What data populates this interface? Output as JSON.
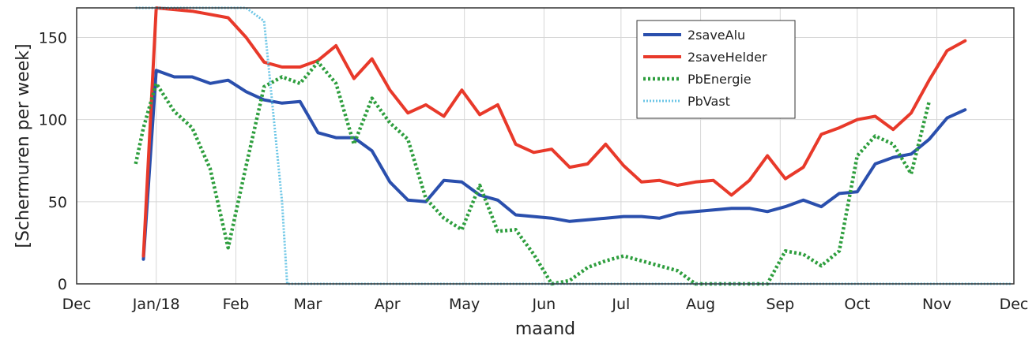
{
  "chart_data": {
    "type": "line",
    "title": "",
    "xlabel": "maand",
    "ylabel": "[Schermuren per week]",
    "x_ticks": [
      "Dec",
      "Jan/18",
      "Feb",
      "Mar",
      "Apr",
      "May",
      "Jun",
      "Jul",
      "Aug",
      "Sep",
      "Oct",
      "Nov",
      "Dec"
    ],
    "y_ticks": [
      0,
      50,
      100,
      150
    ],
    "ylim": [
      0,
      168
    ],
    "xlim": [
      "2017-12-01",
      "2018-12-01"
    ],
    "grid": true,
    "legend_position": "top-right",
    "series": [
      {
        "name": "2saveAlu",
        "color": "#2a4fad",
        "style": "solid",
        "x": [
          "2017-12-27",
          "2018-01-01",
          "2018-01-08",
          "2018-01-15",
          "2018-01-22",
          "2018-01-29",
          "2018-02-05",
          "2018-02-12",
          "2018-02-19",
          "2018-02-26",
          "2018-03-05",
          "2018-03-12",
          "2018-03-19",
          "2018-03-26",
          "2018-04-02",
          "2018-04-09",
          "2018-04-16",
          "2018-04-23",
          "2018-04-30",
          "2018-05-07",
          "2018-05-14",
          "2018-05-21",
          "2018-05-28",
          "2018-06-04",
          "2018-06-11",
          "2018-06-18",
          "2018-06-25",
          "2018-07-02",
          "2018-07-09",
          "2018-07-16",
          "2018-07-23",
          "2018-07-30",
          "2018-08-06",
          "2018-08-13",
          "2018-08-20",
          "2018-08-27",
          "2018-09-03",
          "2018-09-10",
          "2018-09-17",
          "2018-09-24",
          "2018-10-01",
          "2018-10-08",
          "2018-10-15",
          "2018-10-22",
          "2018-10-29",
          "2018-11-05",
          "2018-11-12"
        ],
        "y": [
          15,
          130,
          126,
          126,
          122,
          124,
          117,
          112,
          110,
          111,
          92,
          89,
          89,
          81,
          62,
          51,
          50,
          63,
          62,
          54,
          51,
          42,
          41,
          40,
          38,
          39,
          40,
          41,
          41,
          40,
          43,
          44,
          45,
          46,
          46,
          44,
          47,
          51,
          47,
          55,
          56,
          73,
          77,
          79,
          88,
          101,
          106
        ]
      },
      {
        "name": "2saveHelder",
        "color": "#e8392a",
        "style": "solid",
        "x": [
          "2017-12-27",
          "2018-01-01",
          "2018-01-08",
          "2018-01-15",
          "2018-01-22",
          "2018-01-29",
          "2018-02-05",
          "2018-02-12",
          "2018-02-19",
          "2018-02-26",
          "2018-03-05",
          "2018-03-12",
          "2018-03-19",
          "2018-03-26",
          "2018-04-02",
          "2018-04-09",
          "2018-04-16",
          "2018-04-23",
          "2018-04-30",
          "2018-05-07",
          "2018-05-14",
          "2018-05-21",
          "2018-05-28",
          "2018-06-04",
          "2018-06-11",
          "2018-06-18",
          "2018-06-25",
          "2018-07-02",
          "2018-07-09",
          "2018-07-16",
          "2018-07-23",
          "2018-07-30",
          "2018-08-06",
          "2018-08-13",
          "2018-08-20",
          "2018-08-27",
          "2018-09-03",
          "2018-09-10",
          "2018-09-17",
          "2018-09-24",
          "2018-10-01",
          "2018-10-08",
          "2018-10-15",
          "2018-10-22",
          "2018-10-29",
          "2018-11-05",
          "2018-11-12"
        ],
        "y": [
          17,
          168,
          167,
          166,
          164,
          162,
          150,
          135,
          132,
          132,
          136,
          145,
          125,
          137,
          118,
          104,
          109,
          102,
          118,
          103,
          109,
          85,
          80,
          82,
          71,
          73,
          85,
          72,
          62,
          63,
          60,
          62,
          63,
          54,
          63,
          78,
          64,
          71,
          91,
          95,
          100,
          102,
          94,
          104,
          124,
          142,
          148
        ]
      },
      {
        "name": "PbEnergie",
        "color": "#2e9e3e",
        "style": "dotted",
        "x": [
          "2017-12-24",
          "2017-12-27",
          "2018-01-01",
          "2018-01-08",
          "2018-01-15",
          "2018-01-22",
          "2018-01-29",
          "2018-02-05",
          "2018-02-12",
          "2018-02-19",
          "2018-02-26",
          "2018-03-05",
          "2018-03-12",
          "2018-03-19",
          "2018-03-26",
          "2018-04-02",
          "2018-04-09",
          "2018-04-16",
          "2018-04-23",
          "2018-04-30",
          "2018-05-07",
          "2018-05-14",
          "2018-05-21",
          "2018-05-28",
          "2018-06-04",
          "2018-06-11",
          "2018-06-18",
          "2018-06-25",
          "2018-07-02",
          "2018-07-09",
          "2018-07-16",
          "2018-07-23",
          "2018-07-30",
          "2018-08-06",
          "2018-08-13",
          "2018-08-20",
          "2018-08-27",
          "2018-09-03",
          "2018-09-10",
          "2018-09-17",
          "2018-09-24",
          "2018-10-01",
          "2018-10-08",
          "2018-10-15",
          "2018-10-22",
          "2018-10-29"
        ],
        "y": [
          73,
          95,
          122,
          105,
          95,
          70,
          22,
          72,
          120,
          126,
          122,
          135,
          122,
          85,
          113,
          98,
          88,
          52,
          40,
          33,
          60,
          32,
          33,
          18,
          0,
          2,
          10,
          14,
          17,
          14,
          11,
          8,
          0,
          0,
          0,
          0,
          0,
          20,
          18,
          11,
          20,
          78,
          90,
          85,
          67,
          111
        ]
      },
      {
        "name": "PbVast",
        "color": "#6cc6e6",
        "style": "dotted",
        "x": [
          "2017-12-24",
          "2017-12-27",
          "2018-01-01",
          "2018-01-22",
          "2018-02-05",
          "2018-02-12",
          "2018-02-19",
          "2018-02-21",
          "2018-02-26",
          "2018-03-31",
          "2018-05-31",
          "2018-07-31",
          "2018-09-30",
          "2018-11-30"
        ],
        "y": [
          168,
          168,
          168,
          168,
          168,
          160,
          50,
          0,
          0,
          0,
          0,
          0,
          0,
          0
        ]
      }
    ]
  }
}
